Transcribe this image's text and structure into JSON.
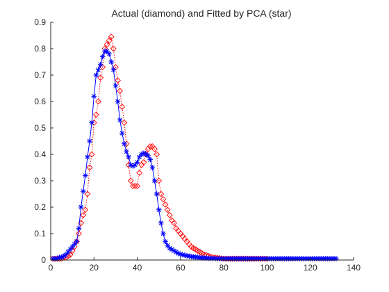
{
  "chart_data": {
    "type": "line",
    "title": "Actual (diamond) and Fitted by PCA (star)",
    "xlabel": "",
    "ylabel": "",
    "xlim": [
      0,
      140
    ],
    "ylim": [
      0,
      0.9
    ],
    "x_ticks": [
      "0",
      "20",
      "40",
      "60",
      "80",
      "100",
      "120",
      "140"
    ],
    "y_ticks": [
      "0",
      "0.1",
      "0.2",
      "0.3",
      "0.4",
      "0.5",
      "0.6",
      "0.7",
      "0.8",
      "0.9"
    ],
    "grid": false,
    "series": [
      {
        "marker": "diamond",
        "line_style": "dotted",
        "color": "#ff0000",
        "x": [
          1,
          2,
          3,
          4,
          5,
          6,
          7,
          8,
          9,
          10,
          11,
          12,
          13,
          14,
          15,
          16,
          17,
          18,
          19,
          20,
          21,
          22,
          23,
          24,
          25,
          26,
          27,
          28,
          29,
          30,
          31,
          32,
          33,
          34,
          35,
          36,
          37,
          38,
          39,
          40,
          41,
          42,
          43,
          44,
          45,
          46,
          47,
          48,
          49,
          50,
          51,
          52,
          53,
          54,
          55,
          56,
          57,
          58,
          59,
          60,
          61,
          62,
          63,
          64,
          65,
          66,
          67,
          68,
          69,
          70,
          71,
          72,
          73,
          74,
          75,
          76,
          77,
          78,
          79,
          80,
          81,
          82,
          83,
          84,
          85,
          86,
          87,
          88,
          89,
          90,
          91,
          92,
          93,
          94,
          95,
          96,
          97,
          98,
          99,
          100
        ],
        "y": [
          0.005,
          0.005,
          0.005,
          0.005,
          0.005,
          0.01,
          0.01,
          0.015,
          0.02,
          0.035,
          0.05,
          0.07,
          0.1,
          0.14,
          0.17,
          0.19,
          0.25,
          0.35,
          0.4,
          0.52,
          0.55,
          0.6,
          0.69,
          0.73,
          0.8,
          0.815,
          0.83,
          0.845,
          0.8,
          0.73,
          0.68,
          0.64,
          0.58,
          0.52,
          0.44,
          0.36,
          0.3,
          0.28,
          0.28,
          0.28,
          0.33,
          0.36,
          0.37,
          0.4,
          0.42,
          0.43,
          0.43,
          0.42,
          0.4,
          0.3,
          0.25,
          0.23,
          0.21,
          0.19,
          0.17,
          0.15,
          0.14,
          0.12,
          0.11,
          0.1,
          0.09,
          0.08,
          0.07,
          0.06,
          0.05,
          0.045,
          0.04,
          0.035,
          0.03,
          0.025,
          0.02,
          0.018,
          0.015,
          0.012,
          0.01,
          0.009,
          0.008,
          0.007,
          0.006,
          0.005,
          0.005,
          0.005,
          0.005,
          0.005,
          0.005,
          0.005,
          0.005,
          0.005,
          0.005,
          0.005,
          0.005,
          0.005,
          0.005,
          0.005,
          0.005,
          0.005,
          0.005,
          0.005,
          0.005,
          0.005
        ]
      },
      {
        "marker": "star",
        "line_style": "solid",
        "color": "#0000ff",
        "x": [
          1,
          2,
          3,
          4,
          5,
          6,
          7,
          8,
          9,
          10,
          11,
          12,
          13,
          14,
          15,
          16,
          17,
          18,
          19,
          20,
          21,
          22,
          23,
          24,
          25,
          26,
          27,
          28,
          29,
          30,
          31,
          32,
          33,
          34,
          35,
          36,
          37,
          38,
          39,
          40,
          41,
          42,
          43,
          44,
          45,
          46,
          47,
          48,
          49,
          50,
          51,
          52,
          53,
          54,
          55,
          56,
          57,
          58,
          59,
          60,
          61,
          62,
          63,
          64,
          65,
          66,
          67,
          68,
          69,
          70,
          71,
          72,
          73,
          74,
          75,
          76,
          77,
          78,
          79,
          80,
          81,
          82,
          83,
          84,
          85,
          86,
          87,
          88,
          89,
          90,
          91,
          92,
          93,
          94,
          95,
          96,
          97,
          98,
          99,
          100,
          101,
          102,
          103,
          104,
          105,
          106,
          107,
          108,
          109,
          110,
          111,
          112,
          113,
          114,
          115,
          116,
          117,
          118,
          119,
          120,
          121,
          122,
          123,
          124,
          125,
          126,
          127,
          128,
          129,
          130,
          131,
          132
        ],
        "y": [
          0.005,
          0.005,
          0.005,
          0.01,
          0.01,
          0.015,
          0.02,
          0.03,
          0.04,
          0.05,
          0.06,
          0.07,
          0.12,
          0.2,
          0.26,
          0.32,
          0.39,
          0.45,
          0.52,
          0.62,
          0.7,
          0.72,
          0.74,
          0.77,
          0.79,
          0.79,
          0.78,
          0.75,
          0.72,
          0.66,
          0.6,
          0.53,
          0.48,
          0.44,
          0.41,
          0.39,
          0.36,
          0.355,
          0.36,
          0.37,
          0.39,
          0.4,
          0.405,
          0.4,
          0.395,
          0.38,
          0.35,
          0.3,
          0.25,
          0.19,
          0.14,
          0.1,
          0.07,
          0.055,
          0.045,
          0.04,
          0.035,
          0.03,
          0.025,
          0.022,
          0.02,
          0.018,
          0.016,
          0.015,
          0.013,
          0.012,
          0.011,
          0.01,
          0.009,
          0.008,
          0.008,
          0.007,
          0.007,
          0.006,
          0.006,
          0.006,
          0.005,
          0.005,
          0.005,
          0.005,
          0.005,
          0.005,
          0.005,
          0.005,
          0.005,
          0.005,
          0.005,
          0.005,
          0.005,
          0.005,
          0.005,
          0.005,
          0.005,
          0.005,
          0.005,
          0.005,
          0.005,
          0.005,
          0.005,
          0.005,
          0.005,
          0.005,
          0.005,
          0.005,
          0.005,
          0.005,
          0.005,
          0.005,
          0.005,
          0.005,
          0.005,
          0.005,
          0.005,
          0.005,
          0.005,
          0.005,
          0.005,
          0.005,
          0.005,
          0.005,
          0.005,
          0.005,
          0.005,
          0.005,
          0.005,
          0.005,
          0.005,
          0.005,
          0.005,
          0.005,
          0.005,
          0.005
        ]
      }
    ]
  }
}
